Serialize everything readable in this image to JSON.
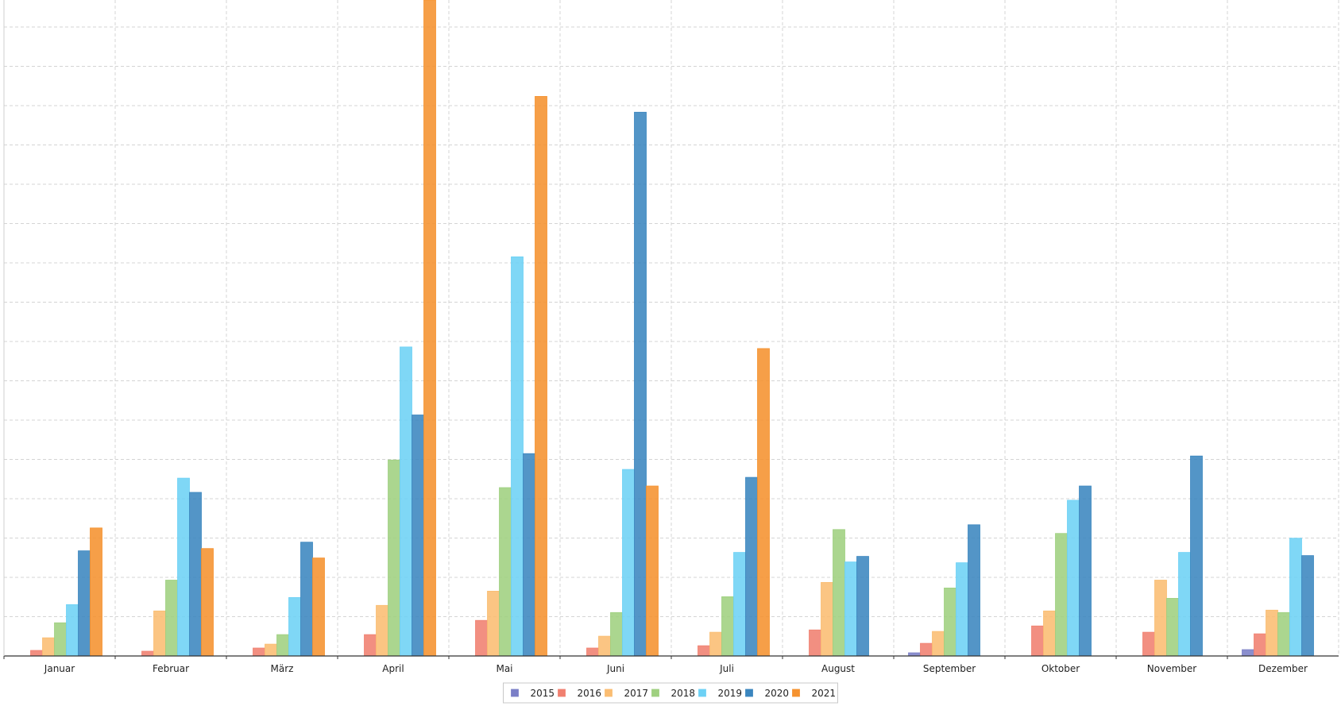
{
  "chart_data": {
    "type": "bar",
    "title": "",
    "xlabel": "",
    "ylabel": "",
    "grid": true,
    "legend_position": "bottom-center",
    "categories": [
      "Januar",
      "Februar",
      "März",
      "April",
      "Mai",
      "Juni",
      "Juli",
      "August",
      "September",
      "Oktober",
      "November",
      "Dezember"
    ],
    "ylim": [
      0,
      830
    ],
    "series": [
      {
        "name": "2015",
        "color": "#7b7fc7",
        "values": [
          0,
          0,
          0,
          0,
          0,
          0,
          0,
          0,
          4,
          0,
          0,
          8
        ]
      },
      {
        "name": "2016",
        "color": "#f08070",
        "values": [
          7,
          6,
          10,
          27,
          45,
          10,
          13,
          33,
          16,
          38,
          30,
          28
        ]
      },
      {
        "name": "2017",
        "color": "#fbbd72",
        "values": [
          23,
          57,
          15,
          64,
          82,
          25,
          30,
          93,
          31,
          57,
          96,
          58
        ]
      },
      {
        "name": "2018",
        "color": "#9fd080",
        "values": [
          42,
          96,
          27,
          248,
          213,
          55,
          75,
          160,
          86,
          155,
          73,
          55
        ]
      },
      {
        "name": "2019",
        "color": "#6dd1f5",
        "values": [
          65,
          225,
          74,
          391,
          505,
          236,
          131,
          119,
          118,
          197,
          131,
          149
        ]
      },
      {
        "name": "2020",
        "color": "#3b86bf",
        "values": [
          133,
          207,
          144,
          305,
          256,
          688,
          226,
          126,
          166,
          215,
          253,
          127
        ]
      },
      {
        "name": "2021",
        "color": "#f5922f",
        "values": [
          162,
          136,
          124,
          830,
          708,
          215,
          389,
          null,
          null,
          null,
          null,
          null
        ]
      }
    ]
  }
}
